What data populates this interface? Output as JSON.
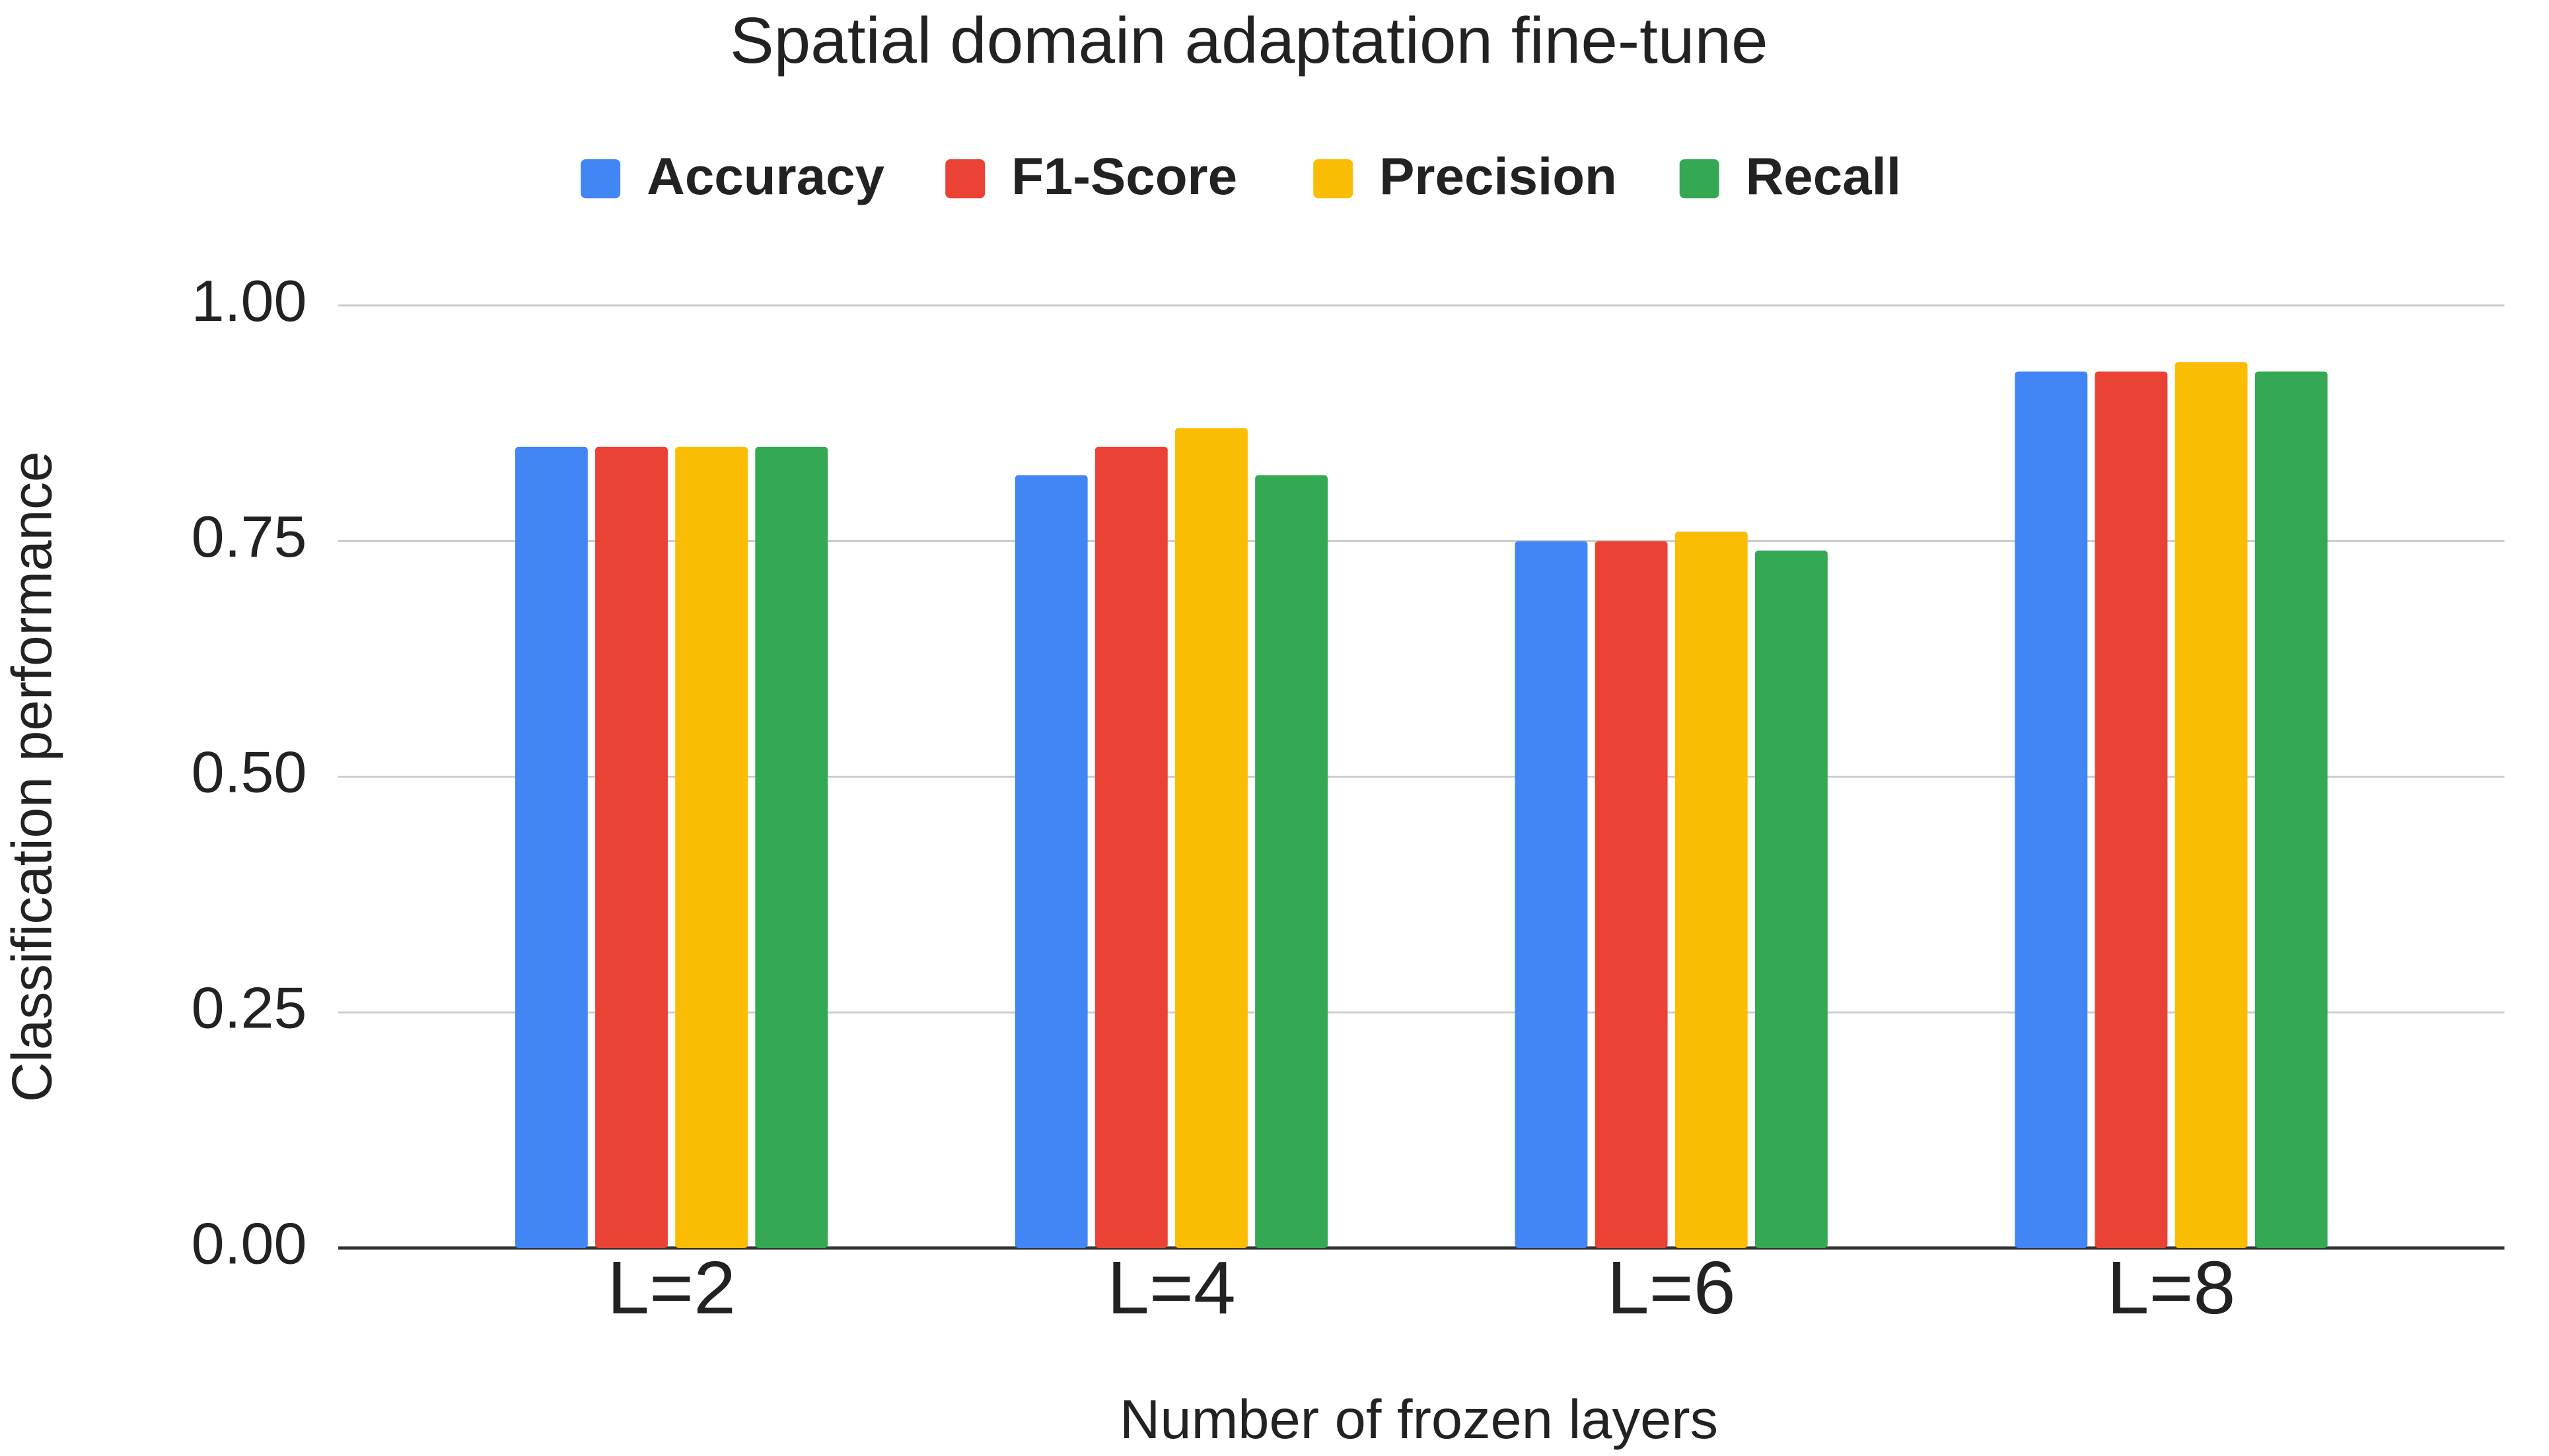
{
  "chart_data": {
    "type": "bar",
    "title": "Spatial domain adaptation fine-tune",
    "x_label": "Number of frozen layers",
    "y_label": "Classification performance",
    "categories": [
      "L=2",
      "L=4",
      "L=6",
      "L=8"
    ],
    "series": [
      {
        "name": "Accuracy",
        "color": "#4285f4",
        "values": [
          0.85,
          0.82,
          0.75,
          0.93
        ]
      },
      {
        "name": "F1-Score",
        "color": "#ea4335",
        "values": [
          0.85,
          0.85,
          0.75,
          0.93
        ]
      },
      {
        "name": "Precision",
        "color": "#fbbc04",
        "values": [
          0.85,
          0.87,
          0.76,
          0.94
        ]
      },
      {
        "name": "Recall",
        "color": "#34a853",
        "values": [
          0.85,
          0.82,
          0.74,
          0.93
        ]
      }
    ],
    "ylim": [
      0,
      1
    ],
    "yticks": [
      {
        "value": 0,
        "label": "0.00"
      },
      {
        "value": 0.25,
        "label": "0.25"
      },
      {
        "value": 0.5,
        "label": "0.50"
      },
      {
        "value": 0.75,
        "label": "0.75"
      },
      {
        "value": 1,
        "label": "1.00"
      }
    ],
    "grid": true,
    "legend": "top"
  }
}
